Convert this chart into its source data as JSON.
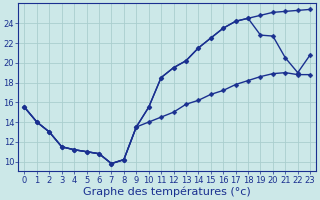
{
  "xlabel": "Graphe des températures (°c)",
  "background_color": "#cce8e8",
  "line_color": "#1a3090",
  "grid_color": "#aacece",
  "xlim": [
    -0.5,
    23.5
  ],
  "ylim": [
    9,
    26
  ],
  "xticks": [
    0,
    1,
    2,
    3,
    4,
    5,
    6,
    7,
    8,
    9,
    10,
    11,
    12,
    13,
    14,
    15,
    16,
    17,
    18,
    19,
    20,
    21,
    22,
    23
  ],
  "yticks": [
    10,
    12,
    14,
    16,
    18,
    20,
    22,
    24
  ],
  "line1_x": [
    0,
    1,
    2,
    3,
    4,
    5,
    6,
    7,
    8,
    9,
    10,
    11,
    12,
    13,
    14,
    15,
    16,
    17,
    18,
    19,
    20,
    21,
    22,
    23
  ],
  "line1_y": [
    15.5,
    14.0,
    13.0,
    11.5,
    11.2,
    11.0,
    10.8,
    9.8,
    10.2,
    13.5,
    15.5,
    18.5,
    19.5,
    20.2,
    21.5,
    22.5,
    23.5,
    24.2,
    24.5,
    24.8,
    25.1,
    25.2,
    25.3,
    25.4
  ],
  "line2_x": [
    0,
    1,
    2,
    3,
    4,
    5,
    6,
    7,
    8,
    9,
    10,
    11,
    12,
    13,
    14,
    15,
    16,
    17,
    18,
    19,
    20,
    21,
    22,
    23
  ],
  "line2_y": [
    15.5,
    14.0,
    13.0,
    11.5,
    11.2,
    11.0,
    10.8,
    9.8,
    10.2,
    13.5,
    15.5,
    18.5,
    19.5,
    20.2,
    21.5,
    22.5,
    23.5,
    24.2,
    24.5,
    22.8,
    22.7,
    20.5,
    19.0,
    20.8
  ],
  "line3_x": [
    0,
    1,
    2,
    3,
    4,
    5,
    6,
    7,
    8,
    9,
    10,
    11,
    12,
    13,
    14,
    15,
    16,
    17,
    18,
    19,
    20,
    21,
    22,
    23
  ],
  "line3_y": [
    15.5,
    14.0,
    13.0,
    11.5,
    11.2,
    11.0,
    10.8,
    9.8,
    10.2,
    13.5,
    14.0,
    14.5,
    15.0,
    15.8,
    16.2,
    16.8,
    17.2,
    17.8,
    18.2,
    18.6,
    18.9,
    19.0,
    18.8,
    18.8
  ],
  "marker": "D",
  "markersize": 2.5,
  "linewidth": 1.0,
  "xlabel_fontsize": 8,
  "tick_fontsize": 6.0
}
